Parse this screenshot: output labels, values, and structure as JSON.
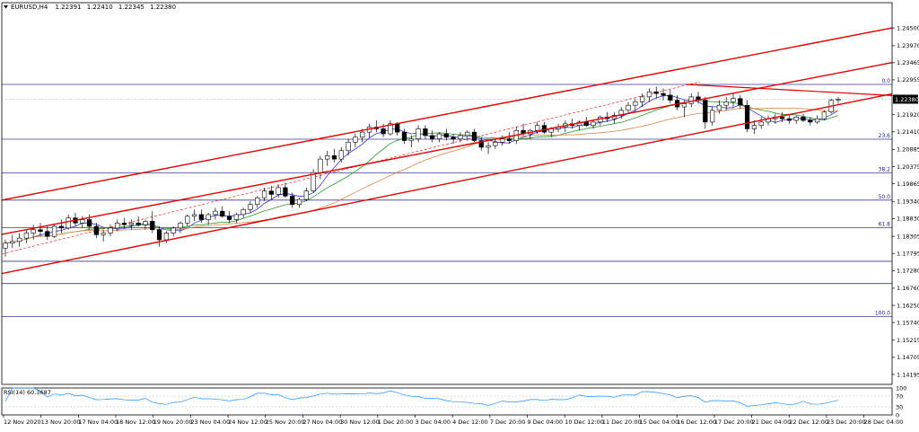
{
  "header": {
    "symbol": "EURUSD,H4",
    "open": "1.22391",
    "high": "1.22410",
    "low": "1.22345",
    "close": "1.22380"
  },
  "chart_data": {
    "type": "candlestick",
    "symbol": "EURUSD",
    "timeframe": "H4",
    "ylim": [
      1.139,
      1.2525
    ],
    "y_ticks": [
      "1.24500",
      "1.23970",
      "1.23465",
      "1.22955",
      "1.22380",
      "1.21920",
      "1.21410",
      "1.20885",
      "1.20375",
      "1.19865",
      "1.19340",
      "1.18830",
      "1.18305",
      "1.17795",
      "1.17280",
      "1.16760",
      "1.16250",
      "1.15740",
      "1.15215",
      "1.14705",
      "1.14195"
    ],
    "x_ticks": [
      "12 Nov 2020",
      "13 Nov 20:00",
      "17 Nov 04:00",
      "18 Nov 12:00",
      "19 Nov 20:00",
      "23 Nov 04:00",
      "24 Nov 12:00",
      "25 Nov 20:00",
      "27 Nov 04:00",
      "30 Nov 12:00",
      "1 Dec 20:00",
      "3 Dec 04:00",
      "4 Dec 12:00",
      "7 Dec 20:00",
      "9 Dec 04:00",
      "10 Dec 12:00",
      "11 Dec 20:00",
      "15 Dec 04:00",
      "16 Dec 12:00",
      "17 Dec 20:00",
      "21 Dec 04:00",
      "22 Dec 12:00",
      "23 Dec 20:00",
      "28 Dec 04:00"
    ],
    "last_price": "1.22380",
    "fibonacci": {
      "levels": [
        {
          "label": "0.0",
          "price": 1.2282
        },
        {
          "label": "23.6",
          "price": 1.2119
        },
        {
          "label": "38.2",
          "price": 1.2019
        },
        {
          "label": "50.0",
          "price": 1.1938
        },
        {
          "label": "61.8",
          "price": 1.1856
        },
        {
          "label": "",
          "price": 1.1756
        },
        {
          "label": "",
          "price": 1.169
        },
        {
          "label": "100.0",
          "price": 1.1592
        }
      ]
    },
    "channel": {
      "color": "#e00000",
      "lines": [
        [
          1.1938,
          1.245
        ],
        [
          1.1836,
          1.2347
        ],
        [
          1.17195,
          1.2254
        ]
      ],
      "wedge_top": [
        1.2282,
        1.2249
      ]
    },
    "candles": [
      {
        "o": 1.1795,
        "h": 1.182,
        "l": 1.177,
        "c": 1.181
      },
      {
        "o": 1.181,
        "h": 1.1835,
        "l": 1.1795,
        "c": 1.1815
      },
      {
        "o": 1.1815,
        "h": 1.184,
        "l": 1.18,
        "c": 1.1825
      },
      {
        "o": 1.1825,
        "h": 1.185,
        "l": 1.181,
        "c": 1.184
      },
      {
        "o": 1.184,
        "h": 1.1865,
        "l": 1.182,
        "c": 1.185
      },
      {
        "o": 1.185,
        "h": 1.187,
        "l": 1.183,
        "c": 1.1845
      },
      {
        "o": 1.1845,
        "h": 1.186,
        "l": 1.182,
        "c": 1.183
      },
      {
        "o": 1.183,
        "h": 1.1865,
        "l": 1.1825,
        "c": 1.186
      },
      {
        "o": 1.186,
        "h": 1.188,
        "l": 1.184,
        "c": 1.1855
      },
      {
        "o": 1.1855,
        "h": 1.1895,
        "l": 1.185,
        "c": 1.1885
      },
      {
        "o": 1.1885,
        "h": 1.19,
        "l": 1.186,
        "c": 1.187
      },
      {
        "o": 1.187,
        "h": 1.189,
        "l": 1.1855,
        "c": 1.188
      },
      {
        "o": 1.188,
        "h": 1.1895,
        "l": 1.185,
        "c": 1.186
      },
      {
        "o": 1.186,
        "h": 1.187,
        "l": 1.1825,
        "c": 1.1835
      },
      {
        "o": 1.1835,
        "h": 1.185,
        "l": 1.1815,
        "c": 1.184
      },
      {
        "o": 1.184,
        "h": 1.1865,
        "l": 1.183,
        "c": 1.1855
      },
      {
        "o": 1.1855,
        "h": 1.188,
        "l": 1.1845,
        "c": 1.187
      },
      {
        "o": 1.187,
        "h": 1.1885,
        "l": 1.1855,
        "c": 1.1865
      },
      {
        "o": 1.1865,
        "h": 1.188,
        "l": 1.185,
        "c": 1.187
      },
      {
        "o": 1.187,
        "h": 1.189,
        "l": 1.186,
        "c": 1.1865
      },
      {
        "o": 1.1865,
        "h": 1.188,
        "l": 1.185,
        "c": 1.1875
      },
      {
        "o": 1.1875,
        "h": 1.1905,
        "l": 1.184,
        "c": 1.185
      },
      {
        "o": 1.185,
        "h": 1.186,
        "l": 1.18,
        "c": 1.182
      },
      {
        "o": 1.182,
        "h": 1.1845,
        "l": 1.181,
        "c": 1.184
      },
      {
        "o": 1.184,
        "h": 1.186,
        "l": 1.183,
        "c": 1.1855
      },
      {
        "o": 1.1855,
        "h": 1.1875,
        "l": 1.184,
        "c": 1.187
      },
      {
        "o": 1.187,
        "h": 1.1895,
        "l": 1.186,
        "c": 1.189
      },
      {
        "o": 1.189,
        "h": 1.191,
        "l": 1.1875,
        "c": 1.1895
      },
      {
        "o": 1.1895,
        "h": 1.191,
        "l": 1.187,
        "c": 1.188
      },
      {
        "o": 1.188,
        "h": 1.19,
        "l": 1.1865,
        "c": 1.1895
      },
      {
        "o": 1.1895,
        "h": 1.1915,
        "l": 1.188,
        "c": 1.1905
      },
      {
        "o": 1.1905,
        "h": 1.192,
        "l": 1.1885,
        "c": 1.189
      },
      {
        "o": 1.189,
        "h": 1.1905,
        "l": 1.187,
        "c": 1.188
      },
      {
        "o": 1.188,
        "h": 1.19,
        "l": 1.187,
        "c": 1.1895
      },
      {
        "o": 1.1895,
        "h": 1.1915,
        "l": 1.1885,
        "c": 1.191
      },
      {
        "o": 1.191,
        "h": 1.1935,
        "l": 1.19,
        "c": 1.1925
      },
      {
        "o": 1.1925,
        "h": 1.195,
        "l": 1.1915,
        "c": 1.1945
      },
      {
        "o": 1.1945,
        "h": 1.1975,
        "l": 1.1935,
        "c": 1.1965
      },
      {
        "o": 1.1965,
        "h": 1.198,
        "l": 1.194,
        "c": 1.1955
      },
      {
        "o": 1.1955,
        "h": 1.1985,
        "l": 1.1945,
        "c": 1.1975
      },
      {
        "o": 1.1975,
        "h": 1.199,
        "l": 1.1945,
        "c": 1.195
      },
      {
        "o": 1.195,
        "h": 1.196,
        "l": 1.1915,
        "c": 1.1925
      },
      {
        "o": 1.1925,
        "h": 1.1945,
        "l": 1.1915,
        "c": 1.194
      },
      {
        "o": 1.194,
        "h": 1.1975,
        "l": 1.1935,
        "c": 1.1965
      },
      {
        "o": 1.1965,
        "h": 1.203,
        "l": 1.196,
        "c": 1.202
      },
      {
        "o": 1.202,
        "h": 1.207,
        "l": 1.2,
        "c": 1.206
      },
      {
        "o": 1.206,
        "h": 1.2085,
        "l": 1.204,
        "c": 1.207
      },
      {
        "o": 1.207,
        "h": 1.209,
        "l": 1.205,
        "c": 1.206
      },
      {
        "o": 1.206,
        "h": 1.2095,
        "l": 1.205,
        "c": 1.2085
      },
      {
        "o": 1.2085,
        "h": 1.212,
        "l": 1.207,
        "c": 1.211
      },
      {
        "o": 1.211,
        "h": 1.2135,
        "l": 1.2095,
        "c": 1.2125
      },
      {
        "o": 1.2125,
        "h": 1.215,
        "l": 1.211,
        "c": 1.214
      },
      {
        "o": 1.214,
        "h": 1.2165,
        "l": 1.2125,
        "c": 1.2155
      },
      {
        "o": 1.2155,
        "h": 1.2175,
        "l": 1.214,
        "c": 1.215
      },
      {
        "o": 1.215,
        "h": 1.2165,
        "l": 1.2125,
        "c": 1.2135
      },
      {
        "o": 1.2135,
        "h": 1.2175,
        "l": 1.213,
        "c": 1.2165
      },
      {
        "o": 1.2165,
        "h": 1.217,
        "l": 1.213,
        "c": 1.214
      },
      {
        "o": 1.214,
        "h": 1.215,
        "l": 1.2105,
        "c": 1.2115
      },
      {
        "o": 1.2115,
        "h": 1.213,
        "l": 1.2095,
        "c": 1.212
      },
      {
        "o": 1.212,
        "h": 1.216,
        "l": 1.211,
        "c": 1.215
      },
      {
        "o": 1.215,
        "h": 1.216,
        "l": 1.212,
        "c": 1.213
      },
      {
        "o": 1.213,
        "h": 1.2145,
        "l": 1.211,
        "c": 1.212
      },
      {
        "o": 1.212,
        "h": 1.214,
        "l": 1.211,
        "c": 1.2135
      },
      {
        "o": 1.2135,
        "h": 1.215,
        "l": 1.2115,
        "c": 1.2125
      },
      {
        "o": 1.2125,
        "h": 1.2135,
        "l": 1.2105,
        "c": 1.212
      },
      {
        "o": 1.212,
        "h": 1.214,
        "l": 1.211,
        "c": 1.213
      },
      {
        "o": 1.213,
        "h": 1.2145,
        "l": 1.2115,
        "c": 1.214
      },
      {
        "o": 1.214,
        "h": 1.215,
        "l": 1.211,
        "c": 1.2115
      },
      {
        "o": 1.2115,
        "h": 1.2125,
        "l": 1.2085,
        "c": 1.2095
      },
      {
        "o": 1.2095,
        "h": 1.211,
        "l": 1.2075,
        "c": 1.21
      },
      {
        "o": 1.21,
        "h": 1.212,
        "l": 1.209,
        "c": 1.211
      },
      {
        "o": 1.211,
        "h": 1.213,
        "l": 1.21,
        "c": 1.212
      },
      {
        "o": 1.212,
        "h": 1.214,
        "l": 1.2105,
        "c": 1.2115
      },
      {
        "o": 1.2115,
        "h": 1.2155,
        "l": 1.2105,
        "c": 1.2145
      },
      {
        "o": 1.2145,
        "h": 1.2165,
        "l": 1.213,
        "c": 1.2135
      },
      {
        "o": 1.2135,
        "h": 1.215,
        "l": 1.212,
        "c": 1.2145
      },
      {
        "o": 1.2145,
        "h": 1.217,
        "l": 1.2135,
        "c": 1.216
      },
      {
        "o": 1.216,
        "h": 1.217,
        "l": 1.2135,
        "c": 1.214
      },
      {
        "o": 1.214,
        "h": 1.2155,
        "l": 1.2125,
        "c": 1.215
      },
      {
        "o": 1.215,
        "h": 1.2165,
        "l": 1.214,
        "c": 1.2155
      },
      {
        "o": 1.2155,
        "h": 1.2175,
        "l": 1.214,
        "c": 1.2165
      },
      {
        "o": 1.2165,
        "h": 1.218,
        "l": 1.215,
        "c": 1.216
      },
      {
        "o": 1.216,
        "h": 1.2175,
        "l": 1.2145,
        "c": 1.217
      },
      {
        "o": 1.217,
        "h": 1.2185,
        "l": 1.2155,
        "c": 1.216
      },
      {
        "o": 1.216,
        "h": 1.2175,
        "l": 1.215,
        "c": 1.217
      },
      {
        "o": 1.217,
        "h": 1.219,
        "l": 1.216,
        "c": 1.2185
      },
      {
        "o": 1.2185,
        "h": 1.22,
        "l": 1.217,
        "c": 1.218
      },
      {
        "o": 1.218,
        "h": 1.22,
        "l": 1.2165,
        "c": 1.219
      },
      {
        "o": 1.219,
        "h": 1.2215,
        "l": 1.218,
        "c": 1.2205
      },
      {
        "o": 1.2205,
        "h": 1.223,
        "l": 1.2195,
        "c": 1.222
      },
      {
        "o": 1.222,
        "h": 1.224,
        "l": 1.22,
        "c": 1.223
      },
      {
        "o": 1.223,
        "h": 1.2255,
        "l": 1.2215,
        "c": 1.2245
      },
      {
        "o": 1.2245,
        "h": 1.227,
        "l": 1.223,
        "c": 1.226
      },
      {
        "o": 1.226,
        "h": 1.2275,
        "l": 1.224,
        "c": 1.2255
      },
      {
        "o": 1.2255,
        "h": 1.227,
        "l": 1.2235,
        "c": 1.225
      },
      {
        "o": 1.225,
        "h": 1.2265,
        "l": 1.2225,
        "c": 1.2235
      },
      {
        "o": 1.2235,
        "h": 1.225,
        "l": 1.2205,
        "c": 1.2215
      },
      {
        "o": 1.2215,
        "h": 1.2235,
        "l": 1.2185,
        "c": 1.2225
      },
      {
        "o": 1.2225,
        "h": 1.2255,
        "l": 1.2215,
        "c": 1.2245
      },
      {
        "o": 1.2245,
        "h": 1.226,
        "l": 1.2225,
        "c": 1.2235
      },
      {
        "o": 1.2235,
        "h": 1.2245,
        "l": 1.215,
        "c": 1.217
      },
      {
        "o": 1.217,
        "h": 1.2215,
        "l": 1.216,
        "c": 1.2205
      },
      {
        "o": 1.2205,
        "h": 1.2235,
        "l": 1.2195,
        "c": 1.222
      },
      {
        "o": 1.222,
        "h": 1.2245,
        "l": 1.2205,
        "c": 1.223
      },
      {
        "o": 1.223,
        "h": 1.2255,
        "l": 1.2215,
        "c": 1.224
      },
      {
        "o": 1.224,
        "h": 1.225,
        "l": 1.221,
        "c": 1.222
      },
      {
        "o": 1.222,
        "h": 1.2235,
        "l": 1.214,
        "c": 1.215
      },
      {
        "o": 1.215,
        "h": 1.2175,
        "l": 1.2135,
        "c": 1.216
      },
      {
        "o": 1.216,
        "h": 1.2185,
        "l": 1.215,
        "c": 1.217
      },
      {
        "o": 1.217,
        "h": 1.219,
        "l": 1.216,
        "c": 1.218
      },
      {
        "o": 1.218,
        "h": 1.2195,
        "l": 1.2165,
        "c": 1.2185
      },
      {
        "o": 1.2185,
        "h": 1.22,
        "l": 1.217,
        "c": 1.218
      },
      {
        "o": 1.218,
        "h": 1.219,
        "l": 1.2165,
        "c": 1.2175
      },
      {
        "o": 1.2175,
        "h": 1.219,
        "l": 1.2165,
        "c": 1.2185
      },
      {
        "o": 1.2185,
        "h": 1.2195,
        "l": 1.217,
        "c": 1.2175
      },
      {
        "o": 1.2175,
        "h": 1.2185,
        "l": 1.216,
        "c": 1.217
      },
      {
        "o": 1.217,
        "h": 1.219,
        "l": 1.2165,
        "c": 1.218
      },
      {
        "o": 1.218,
        "h": 1.2205,
        "l": 1.2175,
        "c": 1.22
      },
      {
        "o": 1.22,
        "h": 1.224,
        "l": 1.2195,
        "c": 1.2235
      },
      {
        "o": 1.2235,
        "h": 1.2245,
        "l": 1.2225,
        "c": 1.2238
      }
    ],
    "indicator": {
      "name": "RSI(14)",
      "value": "60.3687",
      "label": "RSI(14) 60.3687",
      "ylim": [
        0,
        100
      ],
      "ticks": [
        "100",
        "70",
        "30",
        "0"
      ],
      "color": "#1e90ff"
    }
  }
}
